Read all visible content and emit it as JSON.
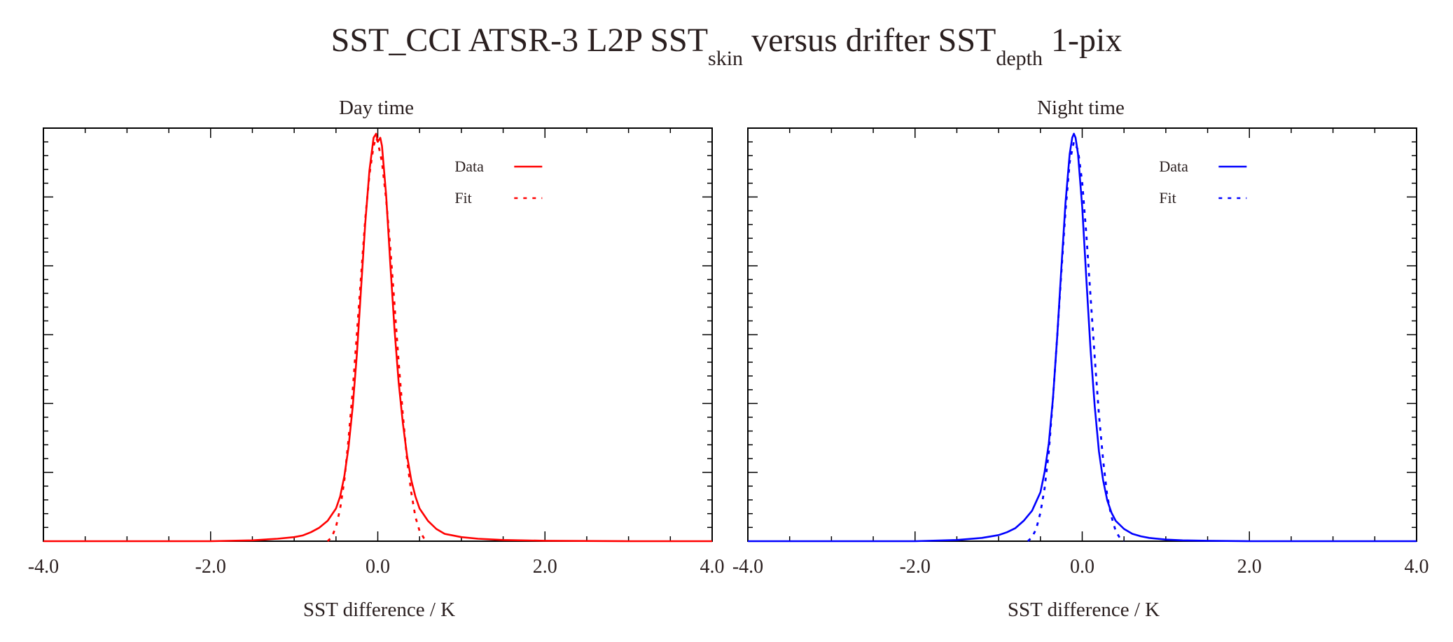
{
  "title": {
    "part1": "SST_CCI ATSR-3 L2P SST",
    "sub1": "skin",
    "part2": " versus drifter SST",
    "sub2": "depth",
    "part3": " 1-pix"
  },
  "chart_data": [
    {
      "type": "line",
      "title": "Day time",
      "xlabel": "SST difference / K",
      "ylabel": "",
      "xlim": [
        -4.0,
        4.0
      ],
      "ylim": [
        0,
        1.0
      ],
      "x_ticks": [
        "-4.0",
        "-2.0",
        "0.0",
        "2.0",
        "4.0"
      ],
      "y_tick_labels_shown": false,
      "legend": {
        "position": "top-right",
        "entries": [
          "Data",
          "Fit"
        ]
      },
      "color": "#ff0000",
      "series": [
        {
          "name": "Data",
          "style": "solid",
          "x": [
            -4.0,
            -3.0,
            -2.0,
            -1.5,
            -1.2,
            -1.0,
            -0.9,
            -0.8,
            -0.7,
            -0.6,
            -0.5,
            -0.45,
            -0.4,
            -0.35,
            -0.3,
            -0.25,
            -0.2,
            -0.15,
            -0.1,
            -0.05,
            -0.02,
            0.0,
            0.03,
            0.05,
            0.1,
            0.15,
            0.2,
            0.25,
            0.3,
            0.35,
            0.4,
            0.45,
            0.5,
            0.6,
            0.7,
            0.8,
            1.0,
            1.2,
            1.5,
            2.0,
            3.0,
            4.0
          ],
          "values": [
            0.0,
            0.0,
            0.0,
            0.002,
            0.006,
            0.01,
            0.014,
            0.022,
            0.033,
            0.05,
            0.08,
            0.11,
            0.16,
            0.23,
            0.33,
            0.46,
            0.62,
            0.78,
            0.91,
            0.99,
            1.0,
            0.98,
            0.99,
            0.97,
            0.85,
            0.68,
            0.52,
            0.39,
            0.29,
            0.21,
            0.15,
            0.11,
            0.08,
            0.05,
            0.03,
            0.018,
            0.01,
            0.006,
            0.003,
            0.001,
            0.0,
            0.0
          ]
        },
        {
          "name": "Fit",
          "style": "dotted",
          "x": [
            -0.6,
            -0.55,
            -0.5,
            -0.45,
            -0.4,
            -0.35,
            -0.3,
            -0.25,
            -0.2,
            -0.15,
            -0.1,
            -0.05,
            -0.02,
            0.0,
            0.05,
            0.1,
            0.15,
            0.2,
            0.25,
            0.3,
            0.35,
            0.4,
            0.45,
            0.5,
            0.55,
            0.6
          ],
          "values": [
            0.0,
            0.01,
            0.035,
            0.08,
            0.15,
            0.25,
            0.37,
            0.51,
            0.65,
            0.79,
            0.9,
            0.97,
            0.99,
            0.98,
            0.93,
            0.84,
            0.72,
            0.58,
            0.44,
            0.31,
            0.2,
            0.12,
            0.06,
            0.025,
            0.008,
            0.0
          ]
        }
      ]
    },
    {
      "type": "line",
      "title": "Night time",
      "xlabel": "SST difference / K",
      "ylabel": "",
      "xlim": [
        -4.0,
        4.0
      ],
      "ylim": [
        0,
        1.0
      ],
      "x_ticks": [
        "-4.0",
        "-2.0",
        "0.0",
        "2.0",
        "4.0"
      ],
      "y_tick_labels_shown": false,
      "legend": {
        "position": "top-right",
        "entries": [
          "Data",
          "Fit"
        ]
      },
      "color": "#0000ff",
      "series": [
        {
          "name": "Data",
          "style": "solid",
          "x": [
            -4.0,
            -3.0,
            -2.0,
            -1.5,
            -1.2,
            -1.0,
            -0.9,
            -0.8,
            -0.7,
            -0.6,
            -0.5,
            -0.45,
            -0.4,
            -0.35,
            -0.3,
            -0.25,
            -0.2,
            -0.15,
            -0.12,
            -0.1,
            -0.08,
            -0.05,
            0.0,
            0.05,
            0.1,
            0.15,
            0.2,
            0.25,
            0.3,
            0.35,
            0.4,
            0.5,
            0.6,
            0.7,
            0.8,
            1.0,
            1.2,
            1.5,
            2.0,
            3.0,
            4.0
          ],
          "values": [
            0.0,
            0.0,
            0.0,
            0.003,
            0.008,
            0.015,
            0.022,
            0.032,
            0.05,
            0.075,
            0.12,
            0.17,
            0.24,
            0.35,
            0.5,
            0.67,
            0.83,
            0.95,
            0.99,
            1.0,
            0.99,
            0.95,
            0.82,
            0.64,
            0.47,
            0.33,
            0.22,
            0.15,
            0.1,
            0.07,
            0.05,
            0.03,
            0.018,
            0.012,
            0.008,
            0.004,
            0.002,
            0.001,
            0.0,
            0.0,
            0.0
          ]
        },
        {
          "name": "Fit",
          "style": "dotted",
          "x": [
            -0.65,
            -0.6,
            -0.55,
            -0.5,
            -0.45,
            -0.4,
            -0.35,
            -0.3,
            -0.25,
            -0.2,
            -0.15,
            -0.1,
            -0.05,
            0.0,
            0.05,
            0.1,
            0.15,
            0.2,
            0.25,
            0.3,
            0.35,
            0.4,
            0.45,
            0.5
          ],
          "values": [
            0.0,
            0.01,
            0.03,
            0.07,
            0.13,
            0.22,
            0.35,
            0.5,
            0.66,
            0.81,
            0.93,
            0.98,
            0.96,
            0.88,
            0.75,
            0.6,
            0.45,
            0.31,
            0.2,
            0.11,
            0.06,
            0.025,
            0.008,
            0.0
          ]
        }
      ]
    }
  ]
}
